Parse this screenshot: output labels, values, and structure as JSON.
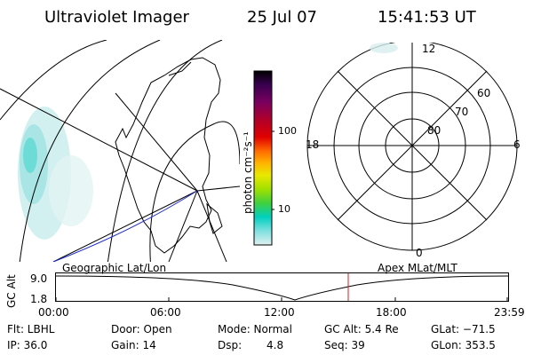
{
  "header": {
    "instrument": "Ultraviolet Imager",
    "date": "25 Jul 07",
    "time": "15:41:53 UT"
  },
  "colorbar": {
    "label": "photon cm⁻²s⁻¹",
    "ticks": [
      "100",
      "10"
    ],
    "colors": [
      "#000000",
      "#3a0050",
      "#7a0060",
      "#b0002a",
      "#e00000",
      "#ff6a00",
      "#ffb400",
      "#e8e800",
      "#a0e000",
      "#40d040",
      "#00d0c0",
      "#80e0e0",
      "#e0f0f0"
    ]
  },
  "polar": {
    "lat_labels": [
      "80",
      "70",
      "60"
    ],
    "mlt_labels": {
      "top": "12",
      "left": "18",
      "right": "6",
      "bottom": "0"
    }
  },
  "panel_labels": {
    "left": "Geographic Lat/Lon",
    "right": "Apex MLat/MLT"
  },
  "timeline": {
    "ylabel": "GC Alt",
    "y_ticks": [
      "9.0",
      "1.8"
    ],
    "x_ticks": [
      "00:00",
      "06:00",
      "12:00",
      "18:00",
      "23:59"
    ]
  },
  "footer": {
    "row1": {
      "flt": "Flt: LBHL",
      "door": "Door: Open",
      "mode": "Mode: Normal",
      "gcalt": "GC Alt: 5.4 Re",
      "glat": "GLat: −71.5"
    },
    "row2": {
      "ip": "IP: 36.0",
      "gain": "Gain: 14",
      "dsp_label": "Dsp:",
      "dsp_value": "4.8",
      "seq": "Seq: 39",
      "glon": "GLon: 353.5"
    }
  }
}
